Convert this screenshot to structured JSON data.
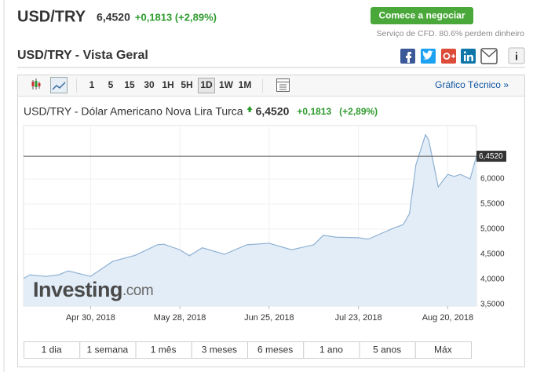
{
  "header": {
    "symbol": "USD/TRY",
    "price": "6,4520",
    "change": "+0,1813 (+2,89%)",
    "button": "Comece a negociar",
    "disclaimer": "Serviço de CFD. 80.6% perdem dinheiro",
    "section_title": "USD/TRY - Vista Geral"
  },
  "toolbar": {
    "intervals": [
      "1",
      "5",
      "15",
      "30",
      "1H",
      "5H",
      "1D",
      "1W",
      "1M"
    ],
    "active_interval": "1D",
    "link": "Gráfico Técnico »"
  },
  "ranges": [
    "1 dia",
    "1 semana",
    "1 mês",
    "3 meses",
    "6 meses",
    "1 ano",
    "5 anos",
    "Máx"
  ],
  "chart_data": {
    "type": "area",
    "title": "USD/TRY - Dólar Americano Nova Lira Turca",
    "price": "6,4520",
    "change": "+0,1813",
    "change_pct": "(+2,89%)",
    "watermark": [
      "Investing",
      ".com"
    ],
    "color": "#8eb1d3",
    "fill": "#e3edf7",
    "x": [
      "2018-04-09",
      "2018-04-11",
      "2018-04-16",
      "2018-04-20",
      "2018-04-23",
      "2018-04-30",
      "2018-05-07",
      "2018-05-14",
      "2018-05-21",
      "2018-05-23",
      "2018-05-28",
      "2018-05-31",
      "2018-06-04",
      "2018-06-11",
      "2018-06-18",
      "2018-06-25",
      "2018-07-02",
      "2018-07-09",
      "2018-07-12",
      "2018-07-16",
      "2018-07-23",
      "2018-07-26",
      "2018-07-30",
      "2018-08-03",
      "2018-08-06",
      "2018-08-08",
      "2018-08-10",
      "2018-08-13",
      "2018-08-14",
      "2018-08-16",
      "2018-08-17",
      "2018-08-20",
      "2018-08-22",
      "2018-08-24",
      "2018-08-27",
      "2018-08-29"
    ],
    "values": [
      4.02,
      4.09,
      4.06,
      4.09,
      4.17,
      4.06,
      4.36,
      4.48,
      4.69,
      4.7,
      4.59,
      4.47,
      4.63,
      4.5,
      4.69,
      4.72,
      4.59,
      4.69,
      4.88,
      4.84,
      4.83,
      4.8,
      4.91,
      5.02,
      5.09,
      5.31,
      6.28,
      6.88,
      6.78,
      6.16,
      5.84,
      6.09,
      6.05,
      6.09,
      6.0,
      6.452
    ],
    "xlim": [
      "2018-04-09",
      "2018-08-29"
    ],
    "xticks": [
      {
        "value": "2018-04-30",
        "label": "Apr 30, 2018"
      },
      {
        "value": "2018-05-28",
        "label": "May 28, 2018"
      },
      {
        "value": "2018-06-25",
        "label": "Jun 25, 2018"
      },
      {
        "value": "2018-07-23",
        "label": "Jul 23, 2018"
      },
      {
        "value": "2018-08-20",
        "label": "Aug 20, 2018"
      }
    ],
    "ylim": [
      3.5,
      7.0
    ],
    "yticks": [
      {
        "value": 3.5,
        "label": "3,5000"
      },
      {
        "value": 4.0,
        "label": "4,0000"
      },
      {
        "value": 4.5,
        "label": "4,5000"
      },
      {
        "value": 5.0,
        "label": "5,0000"
      },
      {
        "value": 5.5,
        "label": "5,5000"
      },
      {
        "value": 6.0,
        "label": "6,0000"
      }
    ],
    "price_line": {
      "value": 6.452,
      "label": "6,4520"
    },
    "grid": true
  }
}
